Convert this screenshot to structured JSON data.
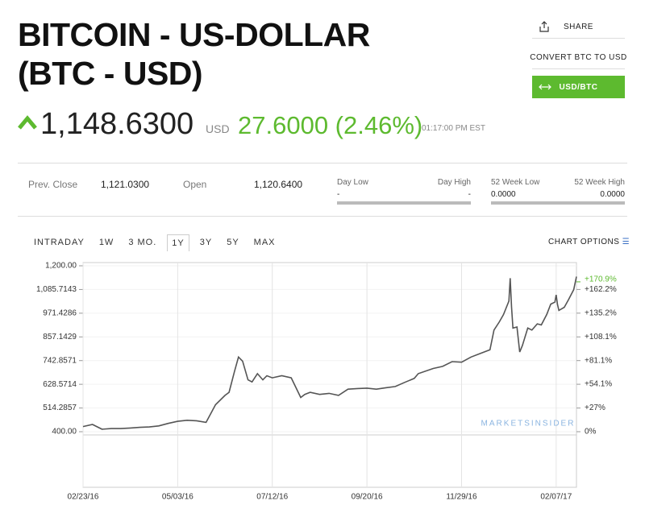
{
  "header": {
    "title_lines": [
      "BITCOIN - US-DOLLAR",
      "(BTC - USD)"
    ]
  },
  "actions": [
    "SHARE",
    "CONVERT BTC TO USD",
    "USD/BTC"
  ],
  "quote": {
    "price": "1,148.6300",
    "currency": "USD",
    "change": "27.6000 (2.46%)",
    "time": "01:17:00 PM EST"
  },
  "stats": [
    {
      "label": "Prev. Close",
      "value": "1,121.0300"
    },
    {
      "label": "Open",
      "value": "1,120.6400"
    }
  ],
  "ranges": [
    {
      "low_label": "Day Low",
      "high_label": "Day High",
      "low": "-",
      "high": "-"
    },
    {
      "low_label": "52 Week Low",
      "high_label": "52 Week High",
      "low": "0.0000",
      "high": "0.0000"
    }
  ],
  "tabs": [
    "INTRADAY",
    "1W",
    "3 MO.",
    "1Y",
    "3Y",
    "5Y",
    "MAX"
  ],
  "active_tab": "1Y",
  "chart_options": "CHART OPTIONS",
  "chart_data": {
    "type": "line",
    "color": "#555555",
    "watermark": "MARKETSINSIDER",
    "x": [
      "02/23/16",
      "03/01/16",
      "03/08/16",
      "03/15/16",
      "03/22/16",
      "03/29/16",
      "04/05/16",
      "04/12/16",
      "04/19/16",
      "04/26/16",
      "05/03/16",
      "05/10/16",
      "05/17/16",
      "05/24/16",
      "05/31/16",
      "06/07/16",
      "06/10/16",
      "06/14/16",
      "06/17/16",
      "06/20/16",
      "06/24/16",
      "06/27/16",
      "07/01/16",
      "07/05/16",
      "07/08/16",
      "07/12/16",
      "07/19/16",
      "07/26/16",
      "08/02/16",
      "08/05/16",
      "08/09/16",
      "08/16/16",
      "08/23/16",
      "08/30/16",
      "09/06/16",
      "09/13/16",
      "09/20/16",
      "09/27/16",
      "10/04/16",
      "10/11/16",
      "10/18/16",
      "10/25/16",
      "10/28/16",
      "11/08/16",
      "11/15/16",
      "11/22/16",
      "11/29/16",
      "12/06/16",
      "12/13/16",
      "12/20/16",
      "12/23/16",
      "12/27/16",
      "12/30/16",
      "01/03/17",
      "01/04/17",
      "01/05/17",
      "01/06/17",
      "01/09/17",
      "01/11/17",
      "01/13/17",
      "01/17/17",
      "01/20/17",
      "01/24/17",
      "01/27/17",
      "01/31/17",
      "02/03/17",
      "02/06/17",
      "02/07/17",
      "02/08/17",
      "02/09/17",
      "02/13/17",
      "02/16/17",
      "02/20/17",
      "02/22/17"
    ],
    "values": [
      425,
      435,
      412,
      415,
      415,
      418,
      421,
      423,
      428,
      440,
      450,
      455,
      453,
      445,
      530,
      575,
      590,
      690,
      760,
      740,
      650,
      640,
      680,
      650,
      670,
      660,
      670,
      660,
      565,
      580,
      590,
      580,
      585,
      575,
      605,
      608,
      610,
      605,
      612,
      618,
      638,
      657,
      680,
      705,
      715,
      738,
      735,
      760,
      778,
      795,
      890,
      930,
      965,
      1030,
      1140,
      1000,
      900,
      905,
      784,
      815,
      900,
      890,
      920,
      915,
      965,
      1015,
      1025,
      1060,
      1013,
      985,
      1000,
      1035,
      1085,
      1148
    ],
    "xlim": [
      "02/23/16",
      "02/22/17"
    ],
    "xticks": [
      "02/23/16",
      "05/03/16",
      "07/12/16",
      "09/20/16",
      "11/29/16",
      "02/07/17"
    ],
    "ylim": [
      400,
      1200
    ],
    "yticks": [
      {
        "value": 400,
        "label": "400.00"
      },
      {
        "value": 514.2857,
        "label": "514.2857"
      },
      {
        "value": 628.5714,
        "label": "628.5714"
      },
      {
        "value": 742.8571,
        "label": "742.8571"
      },
      {
        "value": 857.1429,
        "label": "857.1429"
      },
      {
        "value": 971.4286,
        "label": "971.4286"
      },
      {
        "value": 1085.7143,
        "label": "1,085.7143"
      },
      {
        "value": 1200,
        "label": "1,200.00"
      }
    ],
    "y2lim": [
      0,
      189.2
    ],
    "y2ticks": [
      {
        "value": 0,
        "label": "0%"
      },
      {
        "value": 27,
        "label": "+27%"
      },
      {
        "value": 54.1,
        "label": "+54.1%"
      },
      {
        "value": 81.1,
        "label": "+81.1%"
      },
      {
        "value": 108.1,
        "label": "+108.1%"
      },
      {
        "value": 135.2,
        "label": "+135.2%"
      },
      {
        "value": 162.2,
        "label": "+162.2%"
      }
    ],
    "last_change": {
      "value": 170.9,
      "label": "+170.9%"
    },
    "grid": true
  }
}
